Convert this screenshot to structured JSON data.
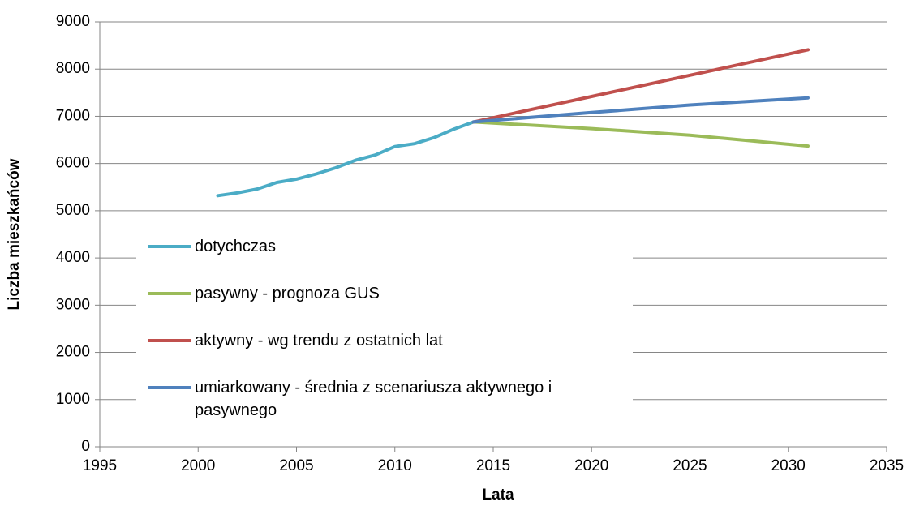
{
  "chart_data": {
    "type": "line",
    "xlabel": "Lata",
    "ylabel": "Liczba mieszkańców",
    "xlim": [
      1995,
      2035
    ],
    "xticks": [
      1995,
      2000,
      2005,
      2010,
      2015,
      2020,
      2025,
      2030,
      2035
    ],
    "ylim": [
      0,
      9000
    ],
    "yticks": [
      0,
      1000,
      2000,
      3000,
      4000,
      5000,
      6000,
      7000,
      8000,
      9000
    ],
    "grid": true,
    "legend": "lower left",
    "series": [
      {
        "name": "dotychczas",
        "color": "#4bacc6",
        "x": [
          2001,
          2002,
          2003,
          2004,
          2005,
          2006,
          2007,
          2008,
          2009,
          2010,
          2011,
          2012,
          2013,
          2014
        ],
        "values": [
          5320,
          5380,
          5460,
          5600,
          5670,
          5780,
          5910,
          6070,
          6180,
          6360,
          6420,
          6550,
          6730,
          6880
        ]
      },
      {
        "name": "pasywny - prognoza GUS",
        "color": "#9bbb59",
        "x": [
          2014,
          2020,
          2025,
          2031
        ],
        "values": [
          6880,
          6740,
          6600,
          6370
        ]
      },
      {
        "name": "aktywny - wg trendu z ostatnich lat",
        "color": "#c0504d",
        "x": [
          2014,
          2020,
          2025,
          2031
        ],
        "values": [
          6880,
          7420,
          7870,
          8410
        ]
      },
      {
        "name": "umiarkowany - średnia z scenariusza aktywnego i pasywnego",
        "color": "#4f81bd",
        "x": [
          2014,
          2020,
          2025,
          2031
        ],
        "values": [
          6880,
          7080,
          7240,
          7390
        ]
      }
    ]
  }
}
